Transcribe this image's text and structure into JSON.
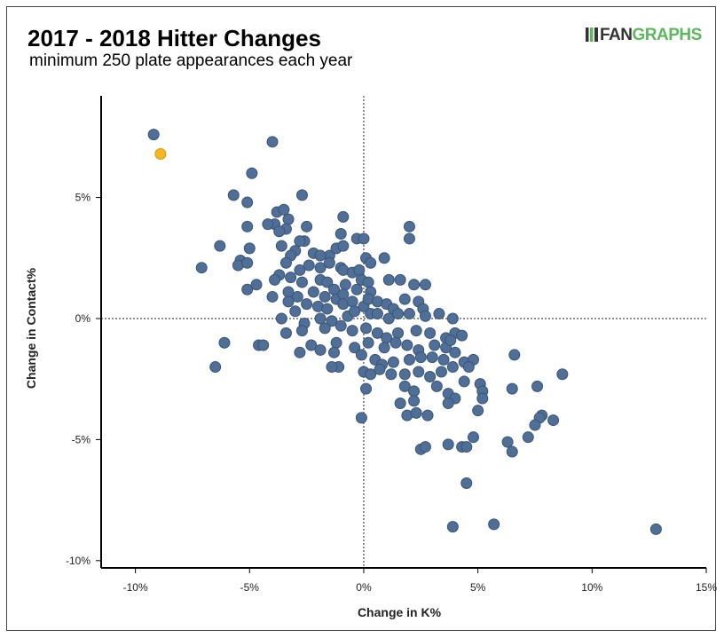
{
  "header": {
    "title": "2017 - 2018 Hitter Changes",
    "subtitle": "minimum 250 plate appearances each year",
    "logo_part1": "FAN",
    "logo_part2": "GRAPHS"
  },
  "colors": {
    "point": "#4f6f96",
    "point_stroke": "#3a5478",
    "highlight": "#f2b81e",
    "highlight_stroke": "#d39b0a",
    "logo_green": "#5cb85c"
  },
  "chart_data": {
    "type": "scatter",
    "title": "2017 - 2018 Hitter Changes",
    "subtitle": "minimum 250 plate appearances each year",
    "xlabel": "Change in K%",
    "ylabel": "Change in Contact%",
    "xlim": [
      -11.5,
      15
    ],
    "ylim": [
      -10.3,
      9.2
    ],
    "x_ticks": [
      -10,
      -5,
      0,
      5,
      10,
      15
    ],
    "x_tick_labels": [
      "-10%",
      "-5%",
      "0%",
      "5%",
      "10%",
      "15%"
    ],
    "y_ticks": [
      5,
      0,
      -5,
      -10
    ],
    "y_tick_labels": [
      "5%",
      "0%",
      "-5%",
      "-10%"
    ],
    "reference_lines": {
      "x": 0,
      "y": 0,
      "style": "dotted"
    },
    "grid": false,
    "highlighted_point": [
      -8.9,
      6.8
    ],
    "points": [
      [
        -9.2,
        7.6
      ],
      [
        -4.0,
        7.3
      ],
      [
        -4.9,
        6.0
      ],
      [
        -5.7,
        5.1
      ],
      [
        -5.1,
        4.8
      ],
      [
        -2.7,
        5.1
      ],
      [
        -3.8,
        4.4
      ],
      [
        -3.5,
        4.5
      ],
      [
        -3.3,
        4.1
      ],
      [
        -3.9,
        3.9
      ],
      [
        -4.2,
        3.9
      ],
      [
        -3.4,
        3.7
      ],
      [
        -3.7,
        3.6
      ],
      [
        -2.5,
        3.8
      ],
      [
        -2.6,
        3.2
      ],
      [
        -2.8,
        3.2
      ],
      [
        -6.3,
        3.0
      ],
      [
        -5.1,
        3.8
      ],
      [
        -3.6,
        3.0
      ],
      [
        -5.0,
        2.9
      ],
      [
        -3.0,
        2.8
      ],
      [
        -3.2,
        2.6
      ],
      [
        -2.2,
        2.7
      ],
      [
        -1.5,
        2.6
      ],
      [
        -1.2,
        2.9
      ],
      [
        -1.9,
        2.6
      ],
      [
        -5.4,
        2.4
      ],
      [
        -5.5,
        2.2
      ],
      [
        -5.1,
        2.3
      ],
      [
        -7.1,
        2.1
      ],
      [
        -3.4,
        2.3
      ],
      [
        -2.8,
        2.0
      ],
      [
        -2.4,
        2.2
      ],
      [
        -1.9,
        2.1
      ],
      [
        -1.5,
        2.3
      ],
      [
        -1.0,
        2.1
      ],
      [
        -0.9,
        2.0
      ],
      [
        -0.9,
        3.0
      ],
      [
        -1.0,
        3.5
      ],
      [
        -0.9,
        4.2
      ],
      [
        -0.3,
        3.3
      ],
      [
        0.0,
        3.3
      ],
      [
        2.0,
        3.8
      ],
      [
        2.0,
        3.3
      ],
      [
        -3.7,
        1.8
      ],
      [
        -3.2,
        1.7
      ],
      [
        -2.7,
        1.5
      ],
      [
        -1.9,
        1.6
      ],
      [
        -1.6,
        1.5
      ],
      [
        -1.3,
        1.2
      ],
      [
        -0.8,
        1.4
      ],
      [
        -0.5,
        1.9
      ],
      [
        -0.2,
        2.0
      ],
      [
        0.1,
        2.5
      ],
      [
        0.3,
        2.3
      ],
      [
        0.9,
        2.5
      ],
      [
        -5.1,
        1.2
      ],
      [
        -4.7,
        1.4
      ],
      [
        -3.9,
        1.6
      ],
      [
        -3.3,
        1.1
      ],
      [
        -2.9,
        0.9
      ],
      [
        -2.2,
        1.1
      ],
      [
        -1.7,
        0.9
      ],
      [
        -1.2,
        0.8
      ],
      [
        -0.9,
        1.0
      ],
      [
        -0.3,
        1.2
      ],
      [
        -0.1,
        1.6
      ],
      [
        0.2,
        1.5
      ],
      [
        0.3,
        1.1
      ],
      [
        1.1,
        1.6
      ],
      [
        1.6,
        1.6
      ],
      [
        2.2,
        1.4
      ],
      [
        2.7,
        1.4
      ],
      [
        -4.0,
        0.9
      ],
      [
        -3.3,
        0.7
      ],
      [
        -2.5,
        0.6
      ],
      [
        -3.0,
        0.3
      ],
      [
        -2.0,
        0.5
      ],
      [
        -1.6,
        0.4
      ],
      [
        -0.9,
        0.6
      ],
      [
        -0.5,
        0.7
      ],
      [
        0.0,
        0.5
      ],
      [
        0.2,
        0.8
      ],
      [
        0.6,
        0.7
      ],
      [
        1.0,
        0.6
      ],
      [
        1.3,
        0.4
      ],
      [
        1.8,
        0.8
      ],
      [
        2.4,
        0.7
      ],
      [
        2.6,
        0.4
      ],
      [
        -3.6,
        0.0
      ],
      [
        -2.6,
        -0.2
      ],
      [
        -1.9,
        0.0
      ],
      [
        -1.4,
        -0.1
      ],
      [
        -0.7,
        0.1
      ],
      [
        -0.4,
        0.3
      ],
      [
        0.3,
        0.2
      ],
      [
        0.6,
        0.2
      ],
      [
        1.1,
        0.0
      ],
      [
        1.5,
        0.2
      ],
      [
        2.0,
        0.2
      ],
      [
        2.7,
        0.1
      ],
      [
        3.3,
        0.2
      ],
      [
        3.9,
        0.0
      ],
      [
        -3.4,
        -0.6
      ],
      [
        -2.7,
        -0.5
      ],
      [
        -1.7,
        -0.4
      ],
      [
        -1.0,
        -0.3
      ],
      [
        -0.5,
        -0.5
      ],
      [
        0.1,
        -0.4
      ],
      [
        0.6,
        -0.6
      ],
      [
        1.0,
        -0.8
      ],
      [
        1.5,
        -0.6
      ],
      [
        2.3,
        -0.5
      ],
      [
        2.9,
        -0.6
      ],
      [
        3.6,
        -0.8
      ],
      [
        4.0,
        -0.6
      ],
      [
        4.3,
        -0.7
      ],
      [
        -6.1,
        -1.0
      ],
      [
        -4.6,
        -1.1
      ],
      [
        -4.4,
        -1.1
      ],
      [
        -2.3,
        -1.1
      ],
      [
        -1.9,
        -1.3
      ],
      [
        -1.2,
        -1.0
      ],
      [
        -0.4,
        -1.2
      ],
      [
        0.2,
        -1.0
      ],
      [
        0.9,
        -1.2
      ],
      [
        1.4,
        -1.0
      ],
      [
        1.9,
        -1.1
      ],
      [
        2.4,
        -1.3
      ],
      [
        3.1,
        -1.1
      ],
      [
        3.6,
        -1.2
      ],
      [
        3.8,
        -0.9
      ],
      [
        -2.8,
        -1.4
      ],
      [
        -1.3,
        -1.4
      ],
      [
        -6.5,
        -2.0
      ],
      [
        -1.1,
        -2.0
      ],
      [
        -1.4,
        -2.0
      ],
      [
        -0.1,
        -1.5
      ],
      [
        0.5,
        -1.7
      ],
      [
        0.8,
        -1.9
      ],
      [
        1.3,
        -1.8
      ],
      [
        2.0,
        -1.7
      ],
      [
        2.5,
        -1.6
      ],
      [
        3.0,
        -1.6
      ],
      [
        3.5,
        -1.7
      ],
      [
        4.0,
        -1.4
      ],
      [
        4.4,
        -1.8
      ],
      [
        4.8,
        -1.7
      ],
      [
        0.0,
        -2.2
      ],
      [
        0.3,
        -2.3
      ],
      [
        0.7,
        -2.1
      ],
      [
        1.2,
        -2.3
      ],
      [
        1.8,
        -2.3
      ],
      [
        2.4,
        -2.2
      ],
      [
        2.9,
        -2.4
      ],
      [
        3.4,
        -2.2
      ],
      [
        3.9,
        -2.0
      ],
      [
        4.6,
        -2.0
      ],
      [
        0.1,
        -2.9
      ],
      [
        1.8,
        -2.8
      ],
      [
        2.2,
        -3.0
      ],
      [
        3.2,
        -2.8
      ],
      [
        3.7,
        -3.1
      ],
      [
        4.4,
        -2.6
      ],
      [
        5.1,
        -2.7
      ],
      [
        5.2,
        -3.0
      ],
      [
        4.0,
        -3.3
      ],
      [
        1.6,
        -3.5
      ],
      [
        2.2,
        -3.4
      ],
      [
        3.7,
        -3.5
      ],
      [
        5.2,
        -3.3
      ],
      [
        6.6,
        -1.5
      ],
      [
        6.5,
        -2.9
      ],
      [
        7.6,
        -2.8
      ],
      [
        8.7,
        -2.3
      ],
      [
        5.0,
        -3.8
      ],
      [
        1.9,
        -4.0
      ],
      [
        2.3,
        -3.9
      ],
      [
        2.8,
        -4.0
      ],
      [
        -0.1,
        -4.1
      ],
      [
        7.8,
        -4.0
      ],
      [
        7.7,
        -4.1
      ],
      [
        8.3,
        -4.2
      ],
      [
        7.5,
        -4.4
      ],
      [
        7.2,
        -4.9
      ],
      [
        4.8,
        -4.9
      ],
      [
        6.3,
        -5.1
      ],
      [
        6.5,
        -5.5
      ],
      [
        4.3,
        -5.3
      ],
      [
        4.5,
        -5.3
      ],
      [
        2.5,
        -5.4
      ],
      [
        2.7,
        -5.3
      ],
      [
        3.7,
        -5.2
      ],
      [
        4.5,
        -6.8
      ],
      [
        5.7,
        -8.5
      ],
      [
        3.9,
        -8.6
      ],
      [
        12.8,
        -8.7
      ]
    ]
  }
}
